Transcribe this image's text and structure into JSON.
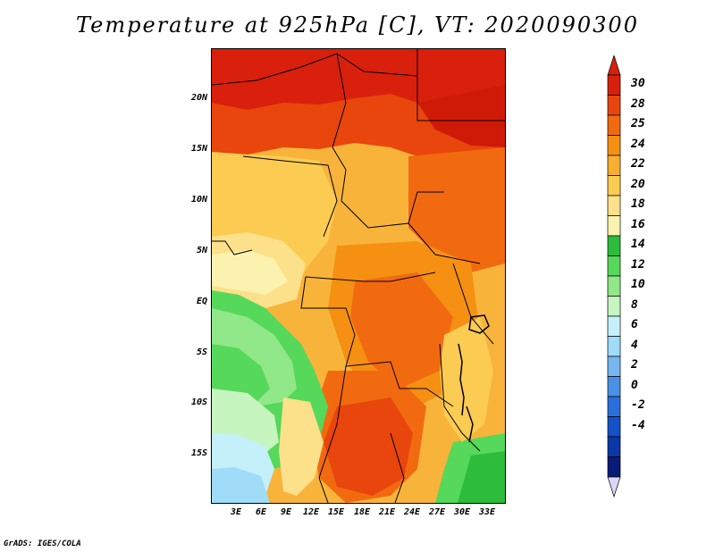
{
  "title": "Temperature at 925hPa [C], VT: 2020090300",
  "credit": "GrADS: IGES/COLA",
  "map": {
    "lat_labels": [
      "20N",
      "15N",
      "10N",
      "5N",
      "EQ",
      "5S",
      "10S",
      "15S"
    ],
    "lon_labels": [
      "3E",
      "6E",
      "9E",
      "12E",
      "15E",
      "18E",
      "21E",
      "24E",
      "27E",
      "30E",
      "33E"
    ]
  },
  "colorbar": {
    "labels": [
      "30",
      "28",
      "25",
      "24",
      "22",
      "20",
      "18",
      "16",
      "14",
      "12",
      "10",
      "8",
      "6",
      "4",
      "2",
      "0",
      "-2",
      "-4"
    ],
    "colors": [
      "#d8200c",
      "#e8460c",
      "#f26a10",
      "#f69012",
      "#f8ae2e",
      "#fbcb52",
      "#fde08a",
      "#fbf2b0",
      "#2cbd3a",
      "#56d85a",
      "#90e888",
      "#c6f5c0",
      "#c4f0fa",
      "#a0dcf8",
      "#78b6f0",
      "#4a90e6",
      "#2a6fde",
      "#1450c8",
      "#0a38a8",
      "#0a1a78"
    ],
    "top_color": "#d8200c",
    "bottom_color": "#dcd6f5"
  }
}
